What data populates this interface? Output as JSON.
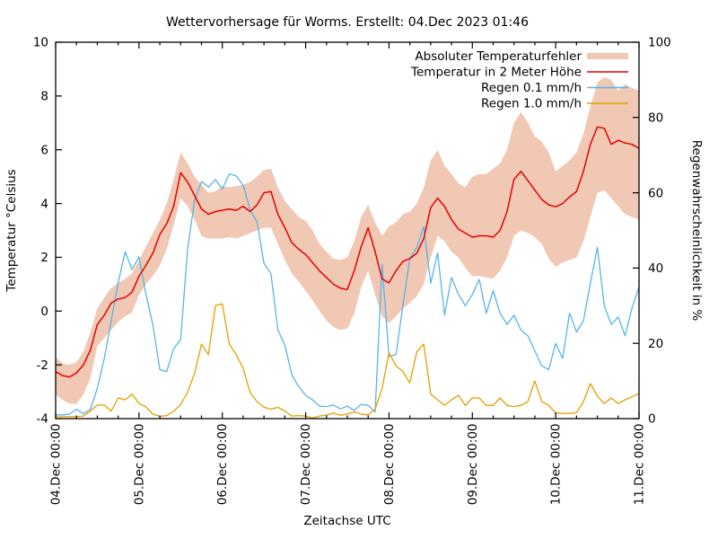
{
  "title": "Wettervorhersage für Worms. Erstellt: 04.Dec 2023 01:46",
  "axes": {
    "x": {
      "label": "Zeitachse UTC",
      "tick_labels": [
        "04.Dec 00:00",
        "05.Dec 00:00",
        "06.Dec 00:00",
        "07.Dec 00:00",
        "08.Dec 00:00",
        "09.Dec 00:00",
        "10.Dec 00:00",
        "11.Dec 00:00"
      ],
      "major_tick_hours": 24,
      "minor_tick_hours": 6
    },
    "y_left": {
      "label": "Temperatur °Celsius",
      "ticks": [
        "-4",
        "-2",
        "0",
        "2",
        "4",
        "6",
        "8",
        "10"
      ],
      "range": [
        -4,
        10
      ]
    },
    "y_right": {
      "label": "Regenwahrscheinlichkeit in %",
      "ticks": [
        "0",
        "20",
        "40",
        "60",
        "80",
        "100"
      ],
      "range": [
        0,
        100
      ]
    }
  },
  "legend": {
    "items": [
      {
        "label": "Absoluter Temperaturfehler",
        "type": "band",
        "color": "#f0c8b4"
      },
      {
        "label": "Temperatur in 2 Meter Höhe",
        "type": "line",
        "color": "#e60000"
      },
      {
        "label": "Regen 0.1 mm/h",
        "type": "line",
        "color": "#56b4e9"
      },
      {
        "label": "Regen 1.0 mm/h",
        "type": "line",
        "color": "#e69f00"
      }
    ]
  },
  "colors": {
    "temperature": "#e60000",
    "error_band": "#f0c8b4",
    "rain01": "#56b4e9",
    "rain10": "#e69f00",
    "axis": "#000000",
    "background": "#ffffff"
  },
  "chart_data": {
    "type": "line",
    "title": "Wettervorhersage für Worms. Erstellt: 04.Dec 2023 01:46",
    "xlabel": "Zeitachse UTC",
    "ylabel_left": "Temperatur °Celsius",
    "ylabel_right": "Regenwahrscheinlichkeit in %",
    "x_range_hours": [
      0,
      168
    ],
    "x_step_hours": 2,
    "x_start": "04.Dec 2023 00:00",
    "x_end": "11.Dec 2023 00:00",
    "ylim_left": [
      -4,
      10
    ],
    "ylim_right": [
      0,
      100
    ],
    "grid": false,
    "legend_position": "top-right-inside",
    "series": [
      {
        "name": "Absoluter Temperaturfehler",
        "kind": "band",
        "axis": "left",
        "upper": [
          -1.7,
          -1.95,
          -2.0,
          -1.9,
          -1.5,
          -0.8,
          0.1,
          0.5,
          0.85,
          1.05,
          1.2,
          1.4,
          1.9,
          2.4,
          2.9,
          3.4,
          4.0,
          4.9,
          5.9,
          5.5,
          5.0,
          4.7,
          4.4,
          4.45,
          4.65,
          4.6,
          4.65,
          4.7,
          4.8,
          5.0,
          5.25,
          5.3,
          4.6,
          4.1,
          3.8,
          3.5,
          3.35,
          3.0,
          2.5,
          2.2,
          1.95,
          1.9,
          2.0,
          2.6,
          3.5,
          3.95,
          3.3,
          2.8,
          3.15,
          3.3,
          3.6,
          3.7,
          4.0,
          4.6,
          5.6,
          6.0,
          5.4,
          5.1,
          4.75,
          4.6,
          5.0,
          5.1,
          5.1,
          5.3,
          5.5,
          6.0,
          7.0,
          7.4,
          7.0,
          6.5,
          6.3,
          5.9,
          5.2,
          5.4,
          5.6,
          5.9,
          6.6,
          7.6,
          8.5,
          8.7,
          8.6,
          8.2,
          8.45,
          8.3,
          8.2
        ],
        "lower": [
          -3.1,
          -3.3,
          -3.45,
          -3.45,
          -3.1,
          -2.5,
          -1.3,
          -1.0,
          -0.7,
          -0.4,
          -0.2,
          -0.05,
          0.6,
          1.0,
          1.3,
          1.7,
          2.3,
          3.2,
          4.2,
          3.9,
          3.4,
          2.8,
          2.7,
          2.7,
          2.7,
          2.75,
          2.7,
          2.8,
          2.9,
          3.0,
          3.1,
          3.1,
          2.5,
          1.9,
          1.4,
          1.1,
          0.75,
          0.4,
          0.0,
          -0.35,
          -0.6,
          -0.7,
          -0.65,
          -0.1,
          0.9,
          1.5,
          0.6,
          -0.2,
          -0.45,
          -0.2,
          0.1,
          0.3,
          0.55,
          1.0,
          2.0,
          2.8,
          2.6,
          2.2,
          2.0,
          1.6,
          1.3,
          1.3,
          1.25,
          1.2,
          1.5,
          2.0,
          2.8,
          3.0,
          2.9,
          2.75,
          2.5,
          1.95,
          1.65,
          1.8,
          1.9,
          2.0,
          2.6,
          3.5,
          4.4,
          4.5,
          4.2,
          3.9,
          3.6,
          3.5,
          3.4
        ]
      },
      {
        "name": "Temperatur in 2 Meter Höhe",
        "kind": "line",
        "axis": "left",
        "values": [
          -2.25,
          -2.4,
          -2.45,
          -2.3,
          -2.0,
          -1.45,
          -0.5,
          -0.15,
          0.3,
          0.45,
          0.5,
          0.7,
          1.3,
          1.7,
          2.15,
          2.85,
          3.25,
          3.9,
          5.15,
          4.8,
          4.3,
          3.8,
          3.6,
          3.7,
          3.75,
          3.8,
          3.75,
          3.9,
          3.7,
          3.95,
          4.4,
          4.45,
          3.6,
          3.1,
          2.55,
          2.3,
          2.1,
          1.8,
          1.5,
          1.25,
          1.0,
          0.85,
          0.8,
          1.5,
          2.4,
          3.1,
          2.2,
          1.2,
          1.05,
          1.5,
          1.85,
          1.95,
          2.15,
          2.7,
          3.85,
          4.2,
          3.9,
          3.4,
          3.05,
          2.9,
          2.75,
          2.8,
          2.8,
          2.75,
          3.0,
          3.7,
          4.9,
          5.2,
          4.85,
          4.5,
          4.15,
          3.95,
          3.88,
          4.0,
          4.25,
          4.45,
          5.2,
          6.2,
          6.85,
          6.8,
          6.2,
          6.35,
          6.25,
          6.2,
          6.05
        ]
      },
      {
        "name": "Regen 0.1 mm/h",
        "kind": "line",
        "axis": "right",
        "values": [
          1,
          1,
          1.2,
          2.5,
          1.3,
          2.5,
          8,
          16,
          26,
          36,
          44.4,
          39.6,
          43,
          33,
          25,
          13,
          12.5,
          18.6,
          21,
          45,
          58,
          63,
          61.5,
          63.5,
          61,
          65,
          64.5,
          62,
          55.5,
          52.3,
          41.3,
          38.5,
          23.6,
          19.5,
          11.7,
          8.5,
          6.2,
          5,
          3.3,
          3.2,
          3.6,
          2.6,
          3.3,
          2.2,
          3.8,
          3.5,
          1.8,
          41,
          16.5,
          17,
          30,
          42.5,
          45.5,
          51,
          36,
          44,
          27.5,
          37.5,
          33,
          30,
          33,
          37,
          28,
          34,
          28,
          25,
          27.5,
          23.5,
          22,
          18,
          14,
          13,
          20,
          16,
          28,
          23,
          26,
          36,
          45.5,
          30,
          25,
          27,
          22,
          29.5,
          35
        ]
      },
      {
        "name": "Regen 1.0 mm/h",
        "kind": "line",
        "axis": "right",
        "values": [
          0.5,
          0.5,
          0.5,
          0.5,
          0.7,
          2,
          3.6,
          3.6,
          2,
          5.5,
          5,
          6.5,
          4,
          3.1,
          1.2,
          0.6,
          0.8,
          1.9,
          3.8,
          7,
          12,
          19.8,
          17,
          30,
          30.5,
          19.8,
          17,
          13.4,
          6.9,
          4.5,
          3,
          2.5,
          3,
          2,
          0.7,
          0.8,
          0.7,
          0.2,
          0.7,
          0.9,
          1.5,
          0.9,
          1.2,
          1.8,
          1.2,
          1.0,
          2.5,
          8,
          17.5,
          14,
          12.5,
          9.5,
          17.7,
          19.8,
          6.5,
          5.0,
          3.5,
          5,
          6.2,
          3.5,
          5.5,
          5.5,
          3.5,
          3.5,
          5.5,
          3.5,
          3.2,
          3.5,
          4.5,
          10,
          4.5,
          3.5,
          1.5,
          1.4,
          1.4,
          1.6,
          4.5,
          9.3,
          6,
          4,
          5.5,
          4,
          5,
          5.8,
          6.7
        ]
      }
    ]
  }
}
